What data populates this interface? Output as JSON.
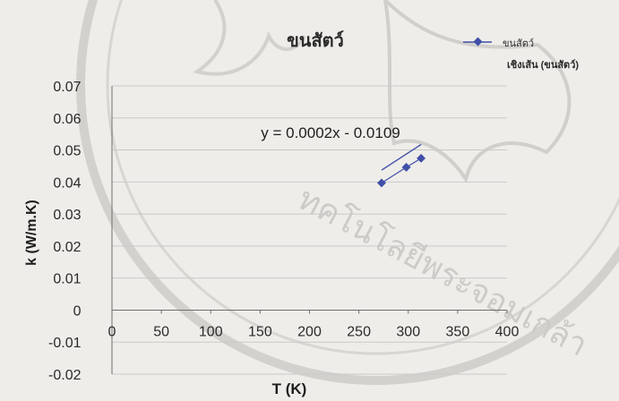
{
  "chart_data": {
    "type": "scatter",
    "title": "ขนสัตว์",
    "xlabel": "T (K)",
    "ylabel": "k (W/m.K)",
    "xlim": [
      0,
      400
    ],
    "ylim": [
      -0.02,
      0.07
    ],
    "x_ticks": [
      0,
      50,
      100,
      150,
      200,
      250,
      300,
      350,
      400
    ],
    "y_ticks": [
      -0.02,
      -0.01,
      0,
      0.01,
      0.02,
      0.03,
      0.04,
      0.05,
      0.06,
      0.07
    ],
    "x_tick_labels": [
      "0",
      "50",
      "100",
      "150",
      "200",
      "250",
      "300",
      "350",
      "400"
    ],
    "y_tick_labels": [
      "-0.02",
      "-0.01",
      "0",
      "0.01",
      "0.02",
      "0.03",
      "0.04",
      "0.05",
      "0.06",
      "0.07"
    ],
    "grid": true,
    "legend_position": "top-right",
    "series": [
      {
        "name": "ขนสัตว์",
        "x": [
          273,
          298,
          313
        ],
        "y": [
          0.0397,
          0.0446,
          0.0474
        ],
        "color": "#3f4fa8"
      }
    ],
    "trendline": {
      "name": "เชิงเส้น (ขนสัตว์)",
      "slope": 0.0002,
      "intercept": -0.0109,
      "x_range": [
        273,
        313
      ],
      "equation": "y = 0.0002x - 0.0109"
    }
  },
  "colors": {
    "background": "#efede9",
    "series": "#3f4fa8",
    "grid": "#c9c9c9",
    "axis": "#6f6f6f",
    "watermark": "#b8b6b2"
  },
  "watermark": {
    "text_top": "ทคโนโลยีพระจอมเกล้า"
  }
}
